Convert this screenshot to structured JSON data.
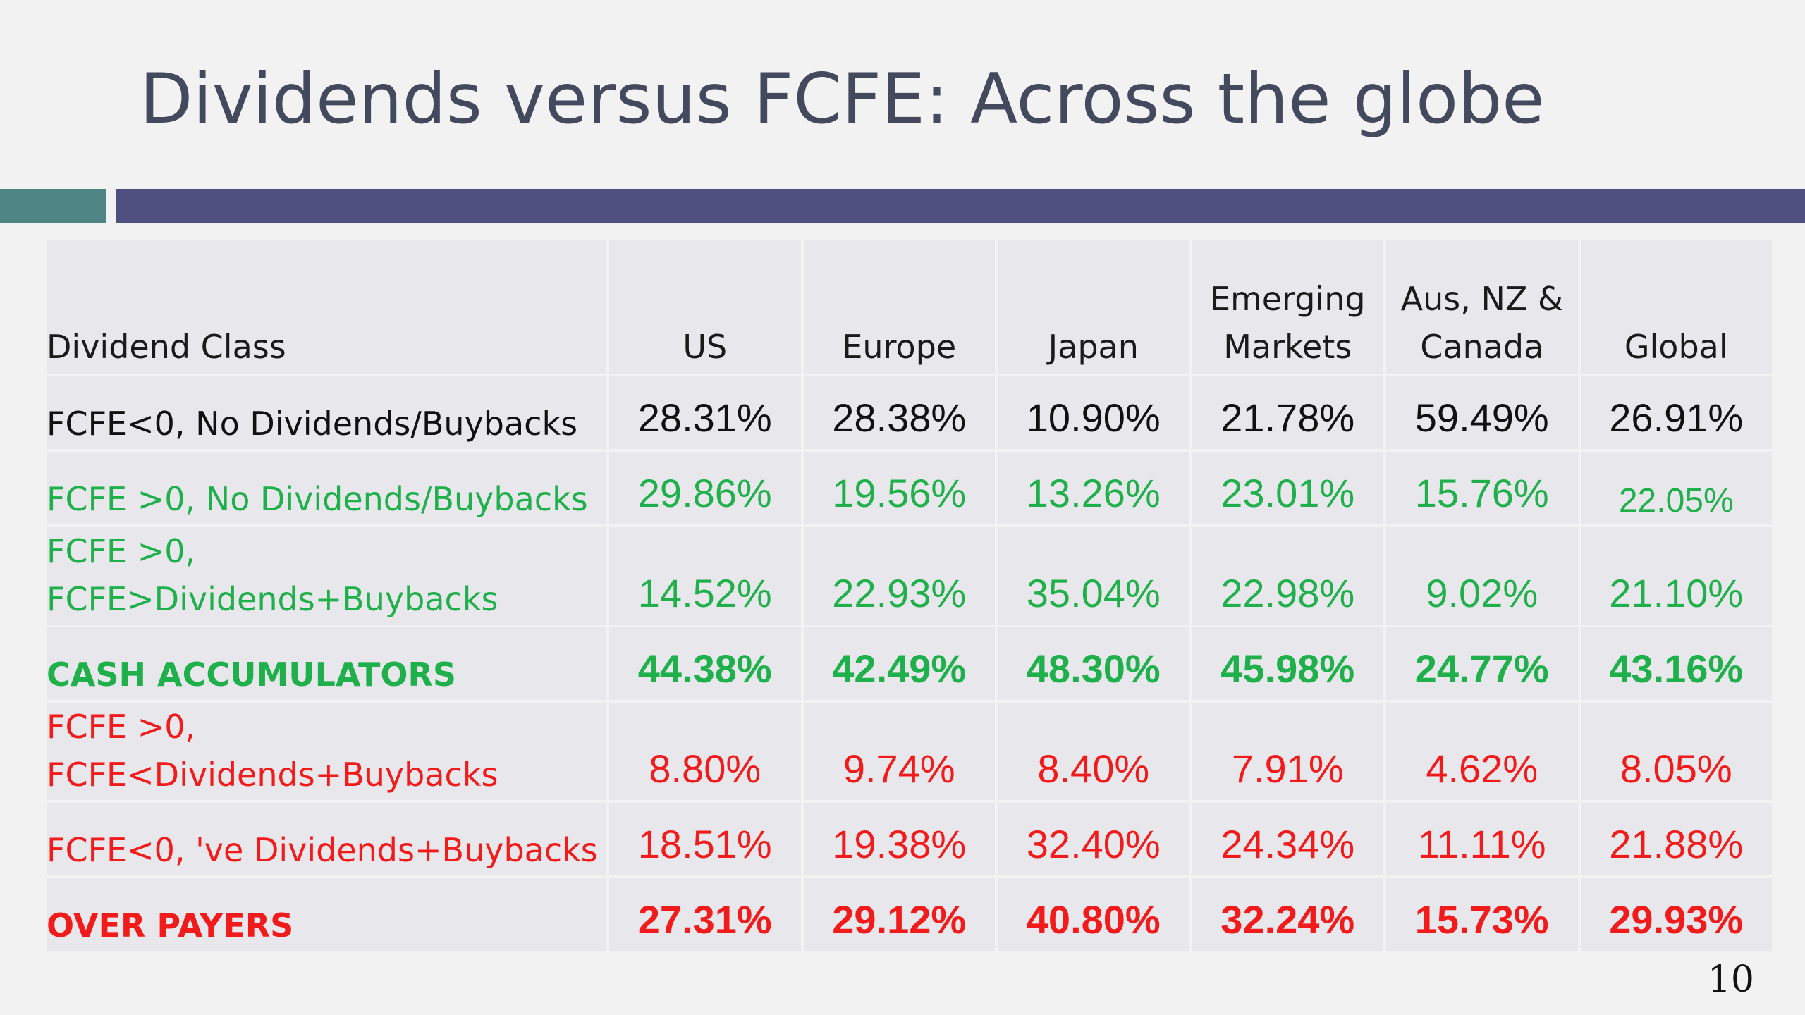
{
  "slide": {
    "title": "Dividends versus FCFE: Across the globe",
    "page_number": "10"
  },
  "table": {
    "headers": [
      [
        "Dividend Class"
      ],
      [
        "US"
      ],
      [
        "Europe"
      ],
      [
        "Japan"
      ],
      [
        "Emerging",
        "Markets"
      ],
      [
        "Aus, NZ &",
        "Canada"
      ],
      [
        "Global"
      ]
    ],
    "rows": [
      {
        "label": [
          "FCFE<0, No Dividends/Buybacks"
        ],
        "values": [
          "28.31%",
          "28.38%",
          "10.90%",
          "21.78%",
          "59.49%",
          "26.91%"
        ],
        "color": "#111111",
        "bold": false
      },
      {
        "label": [
          "FCFE >0, No Dividends/Buybacks"
        ],
        "values": [
          "29.86%",
          "19.56%",
          "13.26%",
          "23.01%",
          "15.76%",
          "22.05%"
        ],
        "color": "#1fb04b",
        "bold": false
      },
      {
        "label": [
          "FCFE >0,",
          "FCFE>Dividends+Buybacks"
        ],
        "values": [
          "14.52%",
          "22.93%",
          "35.04%",
          "22.98%",
          "9.02%",
          "21.10%"
        ],
        "color": "#1fb04b",
        "bold": false
      },
      {
        "label": [
          "CASH ACCUMULATORS"
        ],
        "values": [
          "44.38%",
          "42.49%",
          "48.30%",
          "45.98%",
          "24.77%",
          "43.16%"
        ],
        "color": "#1fb04b",
        "bold": true
      },
      {
        "label": [
          "FCFE >0,",
          "FCFE<Dividends+Buybacks"
        ],
        "values": [
          "8.80%",
          "9.74%",
          "8.40%",
          "7.91%",
          "4.62%",
          "8.05%"
        ],
        "color": "#f21b1b",
        "bold": false
      },
      {
        "label": [
          "FCFE<0, 've Dividends+Buybacks"
        ],
        "values": [
          "18.51%",
          "19.38%",
          "32.40%",
          "24.34%",
          "11.11%",
          "21.88%"
        ],
        "color": "#f21b1b",
        "bold": false
      },
      {
        "label": [
          "OVER PAYERS"
        ],
        "values": [
          "27.31%",
          "29.12%",
          "40.80%",
          "32.24%",
          "15.73%",
          "29.93%"
        ],
        "color": "#f21b1b",
        "bold": true
      }
    ]
  }
}
